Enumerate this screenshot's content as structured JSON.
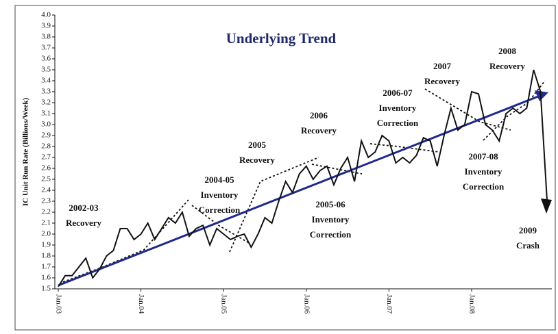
{
  "chart_data": {
    "type": "line",
    "title": "Underlying Trend",
    "y_label": "IC Unit Run Rate (Billions/Week)",
    "categories": [
      "Jan.03",
      null,
      null,
      null,
      null,
      null,
      null,
      null,
      null,
      null,
      null,
      null,
      "Jan.04",
      null,
      null,
      null,
      null,
      null,
      null,
      null,
      null,
      null,
      null,
      null,
      "Jan.05",
      null,
      null,
      null,
      null,
      null,
      null,
      null,
      null,
      null,
      null,
      null,
      "Jan.06",
      null,
      null,
      null,
      null,
      null,
      null,
      null,
      null,
      null,
      null,
      null,
      "Jan.07",
      null,
      null,
      null,
      null,
      null,
      null,
      null,
      null,
      null,
      null,
      null,
      "Jan.08",
      null,
      null,
      null,
      null,
      null,
      null,
      null,
      null,
      null,
      null,
      null
    ],
    "series": [
      {
        "color": "#111111",
        "values": [
          1.52,
          1.62,
          1.62,
          1.7,
          1.78,
          1.6,
          1.68,
          1.8,
          1.85,
          2.05,
          2.05,
          1.95,
          2.0,
          2.1,
          1.95,
          2.05,
          2.15,
          2.1,
          2.2,
          1.98,
          2.05,
          2.08,
          1.9,
          2.05,
          2.0,
          1.95,
          1.98,
          2.0,
          1.88,
          2.0,
          2.15,
          2.1,
          2.3,
          2.48,
          2.38,
          2.55,
          2.62,
          2.5,
          2.58,
          2.62,
          2.45,
          2.6,
          2.7,
          2.48,
          2.85,
          2.7,
          2.75,
          2.9,
          2.85,
          2.65,
          2.7,
          2.65,
          2.72,
          2.88,
          2.85,
          2.62,
          2.9,
          3.15,
          2.95,
          3.0,
          3.3,
          3.28,
          3.0,
          2.95,
          2.85,
          3.1,
          3.15,
          3.1,
          3.15,
          3.5,
          3.3,
          2.25
        ]
      }
    ],
    "ylim": [
      1.5,
      4.0
    ],
    "yticks": [
      1.5,
      1.6,
      1.7,
      1.8,
      1.9,
      {
        "value": 2,
        "label": "2.0"
      },
      2.1,
      2.2,
      2.3,
      2.4,
      2.5,
      2.6,
      2.7,
      2.8,
      2.9,
      {
        "value": 3,
        "label": "3.0"
      },
      3.1,
      3.2,
      3.3,
      3.4,
      3.5,
      3.6,
      3.7,
      3.8,
      3.9,
      {
        "value": 4,
        "label": "4.0"
      }
    ],
    "annotations": [
      {
        "lines": [
          "2002-03",
          "Recovery"
        ]
      },
      {
        "lines": [
          "2004-05",
          "Inventory",
          "Correction"
        ]
      },
      {
        "lines": [
          "2005",
          "Recovery"
        ]
      },
      {
        "lines": [
          "2006",
          "Recovery"
        ]
      },
      {
        "lines": [
          "2005-06",
          "Inventory",
          "Correction"
        ]
      },
      {
        "lines": [
          "2006-07",
          "Inventory",
          "Correction"
        ]
      },
      {
        "lines": [
          "2007",
          "Recovery"
        ]
      },
      {
        "lines": [
          "2008",
          "Recovery"
        ]
      },
      {
        "lines": [
          "2007-08",
          "Inventory",
          "Correction"
        ]
      },
      {
        "lines": [
          "2009",
          "Crash"
        ]
      }
    ]
  }
}
